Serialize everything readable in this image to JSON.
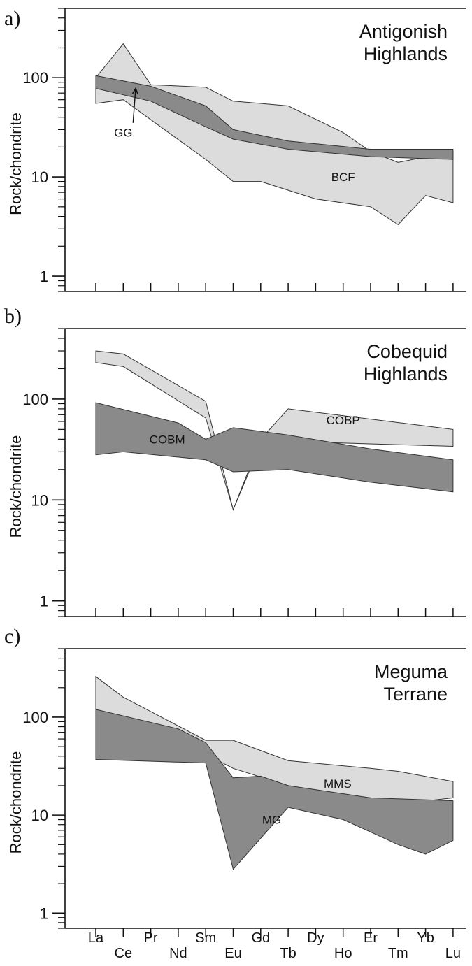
{
  "chart_data": [
    {
      "type": "area",
      "panel": "a)",
      "title": "Antigonish\nHighlands",
      "ylabel": "Rock/chondrite",
      "yscale": "log",
      "ylim": [
        0.7,
        500
      ],
      "yticks": [
        {
          "value": 1,
          "label": "1"
        },
        {
          "value": 10,
          "label": "10"
        },
        {
          "value": 100,
          "label": "100"
        }
      ],
      "x": [
        "La",
        "Ce",
        "Pr",
        "Nd",
        "Sm",
        "Eu",
        "Gd",
        "Tb",
        "Dy",
        "Ho",
        "Er",
        "Tm",
        "Yb",
        "Lu"
      ],
      "series": [
        {
          "name": "BCF",
          "color": "#dcdcdc",
          "upper": [
            [
              0,
              100
            ],
            [
              1,
              220
            ],
            [
              2,
              85
            ],
            [
              4,
              80
            ],
            [
              5,
              58
            ],
            [
              6,
              55
            ],
            [
              7,
              52
            ],
            [
              9,
              28
            ],
            [
              10,
              18
            ],
            [
              11,
              14
            ],
            [
              13,
              18
            ]
          ],
          "lower": [
            [
              0,
              55
            ],
            [
              1,
              60
            ],
            [
              4,
              15
            ],
            [
              5,
              9
            ],
            [
              6,
              9
            ],
            [
              8,
              6
            ],
            [
              10,
              5
            ],
            [
              11,
              3.3
            ],
            [
              12,
              6.5
            ],
            [
              13,
              5.5
            ]
          ]
        },
        {
          "name": "GG",
          "color": "#8a8a8a",
          "upper": [
            [
              0,
              105
            ],
            [
              2,
              82
            ],
            [
              4,
              52
            ],
            [
              5,
              30
            ],
            [
              7,
              23
            ],
            [
              10,
              19
            ],
            [
              13,
              19
            ]
          ],
          "lower": [
            [
              0,
              78
            ],
            [
              2,
              58
            ],
            [
              4,
              32
            ],
            [
              5,
              24
            ],
            [
              7,
              19
            ],
            [
              10,
              16
            ],
            [
              13,
              15
            ]
          ]
        }
      ],
      "annotations": [
        {
          "text": "GG",
          "series": "GG",
          "arrow": true,
          "x": 1,
          "y": 28,
          "target_x": 1.45,
          "target_y": 78
        },
        {
          "text": "BCF",
          "series": "BCF",
          "x": 9,
          "y": 10
        }
      ]
    },
    {
      "type": "area",
      "panel": "b)",
      "title": "Cobequid\nHighlands",
      "ylabel": "Rock/chondrite",
      "yscale": "log",
      "ylim": [
        0.7,
        500
      ],
      "yticks": [
        {
          "value": 1,
          "label": "1"
        },
        {
          "value": 10,
          "label": "10"
        },
        {
          "value": 100,
          "label": "100"
        }
      ],
      "x": [
        "La",
        "Ce",
        "Pr",
        "Nd",
        "Sm",
        "Eu",
        "Gd",
        "Tb",
        "Dy",
        "Ho",
        "Er",
        "Tm",
        "Yb",
        "Lu"
      ],
      "series": [
        {
          "name": "COBP",
          "color": "#dcdcdc",
          "upper": [
            [
              0,
              300
            ],
            [
              1,
              280
            ],
            [
              4,
              95
            ],
            [
              5,
              8
            ],
            [
              6,
              40
            ],
            [
              7,
              80
            ],
            [
              13,
              50
            ]
          ],
          "lower": [
            [
              0,
              230
            ],
            [
              1,
              210
            ],
            [
              4,
              65
            ],
            [
              5,
              8
            ],
            [
              6,
              36
            ],
            [
              7,
              38
            ],
            [
              13,
              34
            ]
          ]
        },
        {
          "name": "COBM",
          "color": "#8a8a8a",
          "upper": [
            [
              0,
              92
            ],
            [
              3,
              58
            ],
            [
              4,
              40
            ],
            [
              5,
              52
            ],
            [
              7,
              44
            ],
            [
              10,
              32
            ],
            [
              13,
              25
            ]
          ],
          "lower": [
            [
              0,
              28
            ],
            [
              1,
              30
            ],
            [
              4,
              25
            ],
            [
              5,
              19
            ],
            [
              7,
              20
            ],
            [
              10,
              15
            ],
            [
              13,
              12
            ]
          ]
        }
      ],
      "annotations": [
        {
          "text": "COBM",
          "series": "COBM",
          "x": 2.6,
          "y": 40
        },
        {
          "text": "COBP",
          "series": "COBP",
          "x": 9,
          "y": 62
        }
      ]
    },
    {
      "type": "area",
      "panel": "c)",
      "title": "Meguma\nTerrane",
      "ylabel": "Rock/chondrite",
      "yscale": "log",
      "ylim": [
        0.7,
        500
      ],
      "yticks": [
        {
          "value": 1,
          "label": "1"
        },
        {
          "value": 10,
          "label": "10"
        },
        {
          "value": 100,
          "label": "100"
        }
      ],
      "x": [
        "La",
        "Ce",
        "Pr",
        "Nd",
        "Sm",
        "Eu",
        "Gd",
        "Tb",
        "Dy",
        "Ho",
        "Er",
        "Tm",
        "Yb",
        "Lu"
      ],
      "series": [
        {
          "name": "MMS",
          "color": "#dcdcdc",
          "upper": [
            [
              0,
              260
            ],
            [
              1,
              160
            ],
            [
              4,
              58
            ],
            [
              5,
              58
            ],
            [
              7,
              36
            ],
            [
              10,
              30
            ],
            [
              11,
              28
            ],
            [
              13,
              22
            ]
          ],
          "lower": [
            [
              0,
              110
            ],
            [
              4,
              42
            ],
            [
              5,
              30
            ],
            [
              7,
              20
            ],
            [
              9,
              16
            ],
            [
              10,
              14
            ],
            [
              11,
              13
            ],
            [
              13,
              15
            ]
          ]
        },
        {
          "name": "MG",
          "color": "#8a8a8a",
          "upper": [
            [
              0,
              120
            ],
            [
              3,
              76
            ],
            [
              4,
              55
            ],
            [
              5,
              24
            ],
            [
              6,
              25
            ],
            [
              7,
              20
            ],
            [
              10,
              15
            ],
            [
              13,
              14
            ]
          ],
          "lower": [
            [
              0,
              37
            ],
            [
              4,
              34
            ],
            [
              5,
              2.8
            ],
            [
              7,
              12
            ],
            [
              9,
              9
            ],
            [
              11,
              5
            ],
            [
              12,
              4
            ],
            [
              13,
              5.5
            ]
          ]
        }
      ],
      "annotations": [
        {
          "text": "MMS",
          "series": "MMS",
          "x": 8.8,
          "y": 21
        },
        {
          "text": "MG",
          "series": "MG",
          "x": 6.4,
          "y": 9
        }
      ]
    }
  ]
}
